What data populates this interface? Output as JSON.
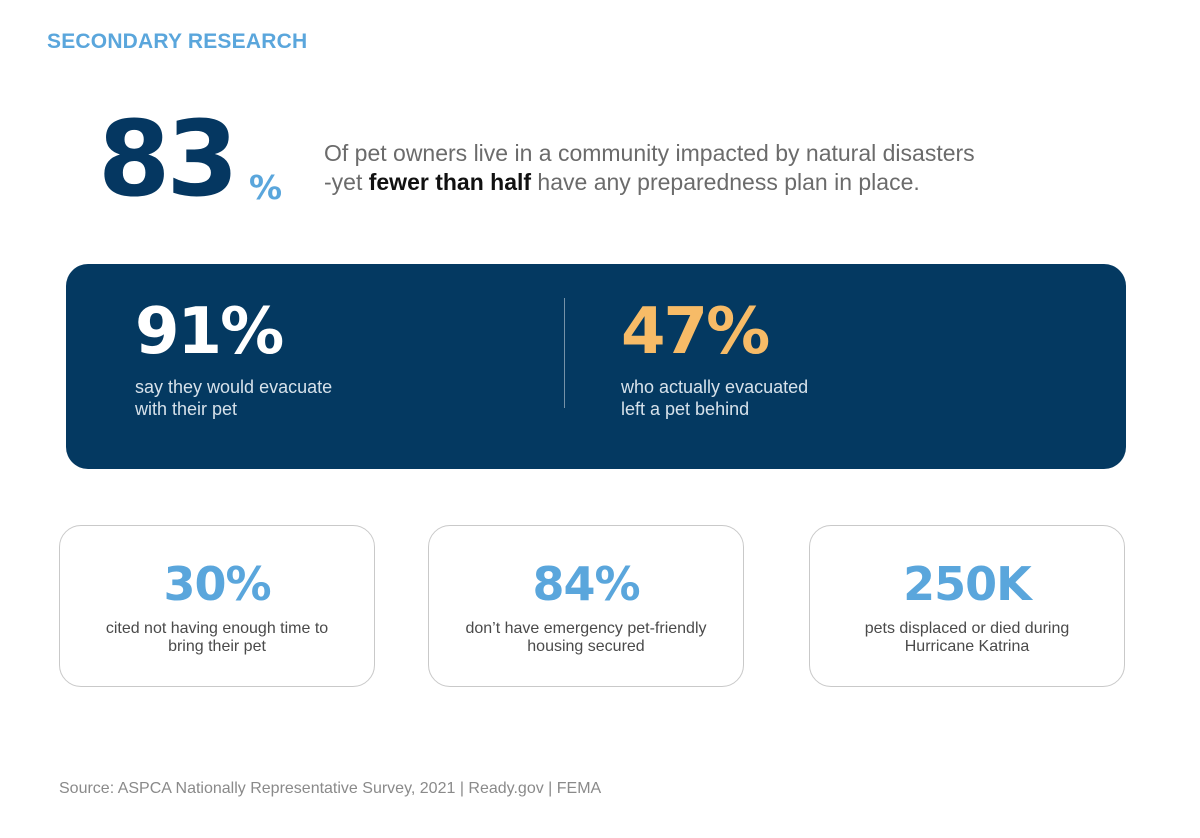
{
  "eyebrow": "SECONDARY RESEARCH",
  "hero": {
    "number": "83",
    "percent_sign": "%",
    "line1": "Of pet owners live in a community impacted by natural disasters",
    "line2_before": "-yet ",
    "line2_bold": "fewer than half",
    "line2_after": " have any preparedness plan in place."
  },
  "panel": {
    "left": {
      "stat": "91%",
      "desc_line1": "say they would evacuate",
      "desc_line2": "with their pet"
    },
    "right": {
      "stat": "47%",
      "desc_line1": "who actually evacuated",
      "desc_line2": "left a pet behind"
    }
  },
  "cards": [
    {
      "stat": "30%",
      "desc_line1": "cited not having enough time to",
      "desc_line2": "bring their pet"
    },
    {
      "stat": "84%",
      "desc_line1": "don’t have emergency pet-friendly",
      "desc_line2": "housing secured"
    },
    {
      "stat": "250K",
      "desc_line1": "pets displaced or died during",
      "desc_line2": "Hurricane Katrina"
    }
  ],
  "source": "Source: ASPCA Nationally Representative Survey, 2021 | Ready.gov | FEMA",
  "colors": {
    "navy": "#043961",
    "accent_blue": "#5aa6dc",
    "gold": "#f7bb67",
    "card_border": "#c9c9c9"
  }
}
